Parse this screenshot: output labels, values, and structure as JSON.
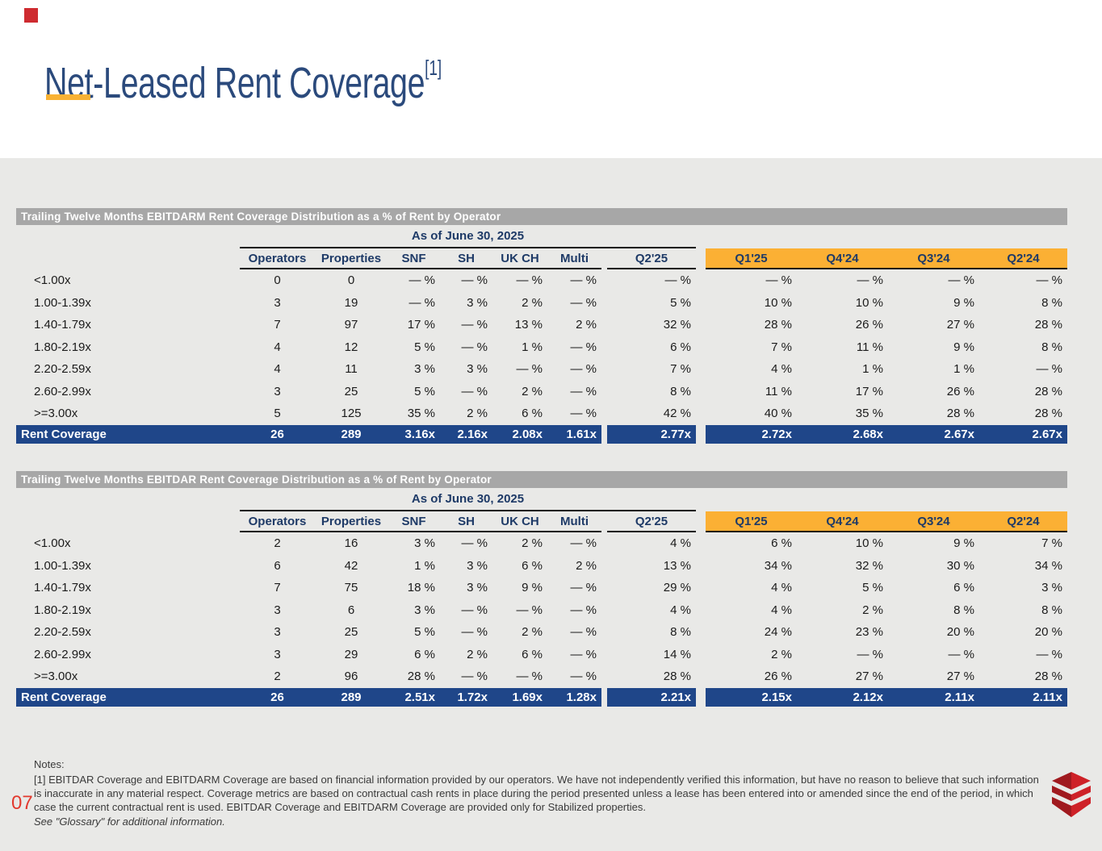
{
  "title": {
    "text": "Net-Leased Rent Coverage",
    "footnote_ref": "[1]"
  },
  "page_number": "07",
  "tables": [
    {
      "bar_title": "Trailing Twelve Months EBITDARM Rent Coverage Distribution as a % of Rent by Operator",
      "as_of": "As of June 30, 2025",
      "columns": [
        "Operators",
        "Properties",
        "SNF",
        "SH",
        "UK CH",
        "Multi",
        "Q2'25",
        "Q1'25",
        "Q4'24",
        "Q3'24",
        "Q2'24"
      ],
      "rows": [
        {
          "label": "<1.00x",
          "values": [
            "0",
            "0",
            "— %",
            "— %",
            "— %",
            "— %",
            "— %",
            "— %",
            "— %",
            "— %",
            "— %"
          ]
        },
        {
          "label": "1.00-1.39x",
          "values": [
            "3",
            "19",
            "— %",
            "3 %",
            "2 %",
            "— %",
            "5 %",
            "10 %",
            "10 %",
            "9 %",
            "8 %"
          ]
        },
        {
          "label": "1.40-1.79x",
          "values": [
            "7",
            "97",
            "17 %",
            "— %",
            "13 %",
            "2 %",
            "32 %",
            "28 %",
            "26 %",
            "27 %",
            "28 %"
          ]
        },
        {
          "label": "1.80-2.19x",
          "values": [
            "4",
            "12",
            "5 %",
            "— %",
            "1 %",
            "— %",
            "6 %",
            "7 %",
            "11 %",
            "9 %",
            "8 %"
          ]
        },
        {
          "label": "2.20-2.59x",
          "values": [
            "4",
            "11",
            "3 %",
            "3 %",
            "— %",
            "— %",
            "7 %",
            "4 %",
            "1 %",
            "1 %",
            "— %"
          ]
        },
        {
          "label": "2.60-2.99x",
          "values": [
            "3",
            "25",
            "5 %",
            "— %",
            "2 %",
            "— %",
            "8 %",
            "11 %",
            "17 %",
            "26 %",
            "28 %"
          ]
        },
        {
          "label": ">=3.00x",
          "values": [
            "5",
            "125",
            "35 %",
            "2 %",
            "6 %",
            "— %",
            "42 %",
            "40 %",
            "35 %",
            "28 %",
            "28 %"
          ]
        }
      ],
      "total": {
        "label": "Rent Coverage",
        "values": [
          "26",
          "289",
          "3.16x",
          "2.16x",
          "2.08x",
          "1.61x",
          "2.77x",
          "2.72x",
          "2.68x",
          "2.67x",
          "2.67x"
        ]
      }
    },
    {
      "bar_title": "Trailing Twelve Months EBITDAR Rent Coverage Distribution as a % of Rent by Operator",
      "as_of": "As of June 30, 2025",
      "columns": [
        "Operators",
        "Properties",
        "SNF",
        "SH",
        "UK CH",
        "Multi",
        "Q2'25",
        "Q1'25",
        "Q4'24",
        "Q3'24",
        "Q2'24"
      ],
      "rows": [
        {
          "label": "<1.00x",
          "values": [
            "2",
            "16",
            "3 %",
            "— %",
            "2 %",
            "— %",
            "4 %",
            "6 %",
            "10 %",
            "9 %",
            "7 %"
          ]
        },
        {
          "label": "1.00-1.39x",
          "values": [
            "6",
            "42",
            "1 %",
            "3 %",
            "6 %",
            "2 %",
            "13 %",
            "34 %",
            "32 %",
            "30 %",
            "34 %"
          ]
        },
        {
          "label": "1.40-1.79x",
          "values": [
            "7",
            "75",
            "18 %",
            "3 %",
            "9 %",
            "— %",
            "29 %",
            "4 %",
            "5 %",
            "6 %",
            "3 %"
          ]
        },
        {
          "label": "1.80-2.19x",
          "values": [
            "3",
            "6",
            "3 %",
            "— %",
            "— %",
            "— %",
            "4 %",
            "4 %",
            "2 %",
            "8 %",
            "8 %"
          ]
        },
        {
          "label": "2.20-2.59x",
          "values": [
            "3",
            "25",
            "5 %",
            "— %",
            "2 %",
            "— %",
            "8 %",
            "24 %",
            "23 %",
            "20 %",
            "20 %"
          ]
        },
        {
          "label": "2.60-2.99x",
          "values": [
            "3",
            "29",
            "6 %",
            "2 %",
            "6 %",
            "— %",
            "14 %",
            "2 %",
            "— %",
            "— %",
            "— %"
          ]
        },
        {
          "label": ">=3.00x",
          "values": [
            "2",
            "96",
            "28 %",
            "— %",
            "— %",
            "— %",
            "28 %",
            "26 %",
            "27 %",
            "27 %",
            "28 %"
          ]
        }
      ],
      "total": {
        "label": "Rent Coverage",
        "values": [
          "26",
          "289",
          "2.51x",
          "1.72x",
          "1.69x",
          "1.28x",
          "2.21x",
          "2.15x",
          "2.12x",
          "2.11x",
          "2.11x"
        ]
      }
    }
  ],
  "notes": {
    "heading": "Notes:",
    "body": "[1] EBITDAR Coverage and EBITDARM Coverage are based on financial information provided by our operators. We have not independently verified this information, but have no reason to believe that such information is inaccurate in any material respect. Coverage metrics are based on contractual cash rents in place during the period presented unless a lease has been entered into or amended since the end of the period, in which case the current contractual rent is used. EBITDAR Coverage and EBITDARM Coverage are provided only for Stabilized properties.",
    "glossary": "See \"Glossary\" for additional information."
  },
  "colors": {
    "title_blue": "#2b4a7c",
    "header_navy": "#1e3a67",
    "accent_orange": "#fbb034",
    "total_row_blue": "#1f4689",
    "bar_gray": "#a7a7a7",
    "page_gray": "#e9e9e7",
    "page_number_red": "#e2392e",
    "logo_red": "#ce2127",
    "logo_red_dark": "#a01a1f"
  }
}
